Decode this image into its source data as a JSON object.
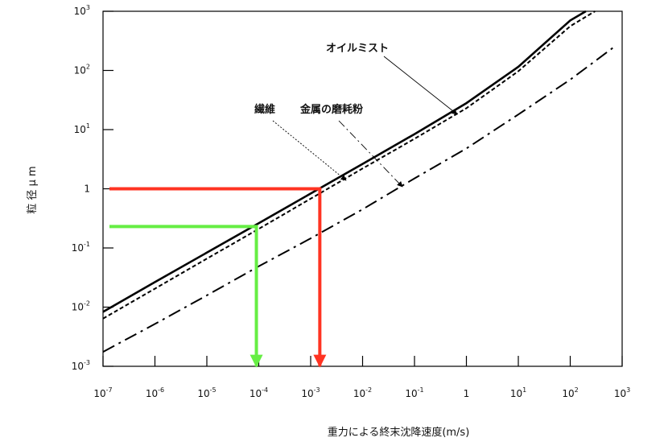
{
  "chart_data": {
    "type": "line",
    "x_scale": "log",
    "y_scale": "log",
    "xlabel": "重力による終末沈降速度(m/s)",
    "ylabel": "粒 径 μ m",
    "xlim": [
      1e-07,
      1000
    ],
    "ylim": [
      0.001,
      1000
    ],
    "x_ticks": [
      {
        "base": "10",
        "exp": "-7"
      },
      {
        "base": "10",
        "exp": "-6"
      },
      {
        "base": "10",
        "exp": "-5"
      },
      {
        "base": "10",
        "exp": "-4"
      },
      {
        "base": "10",
        "exp": "-3"
      },
      {
        "base": "10",
        "exp": "-2"
      },
      {
        "base": "10",
        "exp": "-1"
      },
      {
        "base": "1",
        "exp": ""
      },
      {
        "base": "10",
        "exp": "1"
      },
      {
        "base": "10",
        "exp": "2"
      },
      {
        "base": "10",
        "exp": "3"
      }
    ],
    "y_ticks": [
      {
        "base": "10",
        "exp": "-3"
      },
      {
        "base": "10",
        "exp": "-2"
      },
      {
        "base": "10",
        "exp": "-1"
      },
      {
        "base": "1",
        "exp": ""
      },
      {
        "base": "10",
        "exp": "1"
      },
      {
        "base": "10",
        "exp": "2"
      },
      {
        "base": "10",
        "exp": "3"
      }
    ],
    "series": [
      {
        "name": "オイルミスト",
        "style": "solid",
        "color": "#000000",
        "points": [
          [
            1e-07,
            0.0083
          ],
          [
            1e-06,
            0.0265
          ],
          [
            1e-05,
            0.0835
          ],
          [
            0.0001,
            0.262
          ],
          [
            0.001,
            0.83
          ],
          [
            0.01,
            2.63
          ],
          [
            0.1,
            8.4
          ],
          [
            1,
            28
          ],
          [
            10,
            115
          ],
          [
            100,
            700
          ],
          [
            200,
            1000
          ]
        ]
      },
      {
        "name": "繊維",
        "style": "dashed",
        "color": "#000000",
        "points": [
          [
            1e-07,
            0.0064
          ],
          [
            1e-06,
            0.0205
          ],
          [
            1e-05,
            0.066
          ],
          [
            0.0001,
            0.21
          ],
          [
            0.001,
            0.68
          ],
          [
            0.01,
            2.2
          ],
          [
            0.1,
            7.0
          ],
          [
            1,
            23
          ],
          [
            10,
            97
          ],
          [
            100,
            560
          ],
          [
            300,
            1000
          ]
        ]
      },
      {
        "name": "金属の磨耗粉",
        "style": "dashdot",
        "color": "#000000",
        "points": [
          [
            1e-07,
            0.00175
          ],
          [
            1e-06,
            0.0052
          ],
          [
            1e-05,
            0.0158
          ],
          [
            0.0001,
            0.049
          ],
          [
            0.001,
            0.145
          ],
          [
            0.01,
            0.45
          ],
          [
            0.1,
            1.5
          ],
          [
            1,
            4.8
          ],
          [
            10,
            18
          ],
          [
            100,
            70
          ],
          [
            700,
            250
          ]
        ]
      }
    ],
    "highlights": [
      {
        "color": "#ff3322",
        "diameter": 1,
        "velocity": 0.0015
      },
      {
        "color": "#66ee44",
        "diameter": 0.23,
        "velocity": 9e-05
      }
    ],
    "annotations": [
      {
        "text": "オイルミスト",
        "points_to": "オイルミスト"
      },
      {
        "text": "繊維",
        "points_to": "繊維"
      },
      {
        "text": "金属の磨耗粉",
        "points_to": "金属の磨耗粉"
      }
    ],
    "grid": false,
    "legend": "none"
  }
}
